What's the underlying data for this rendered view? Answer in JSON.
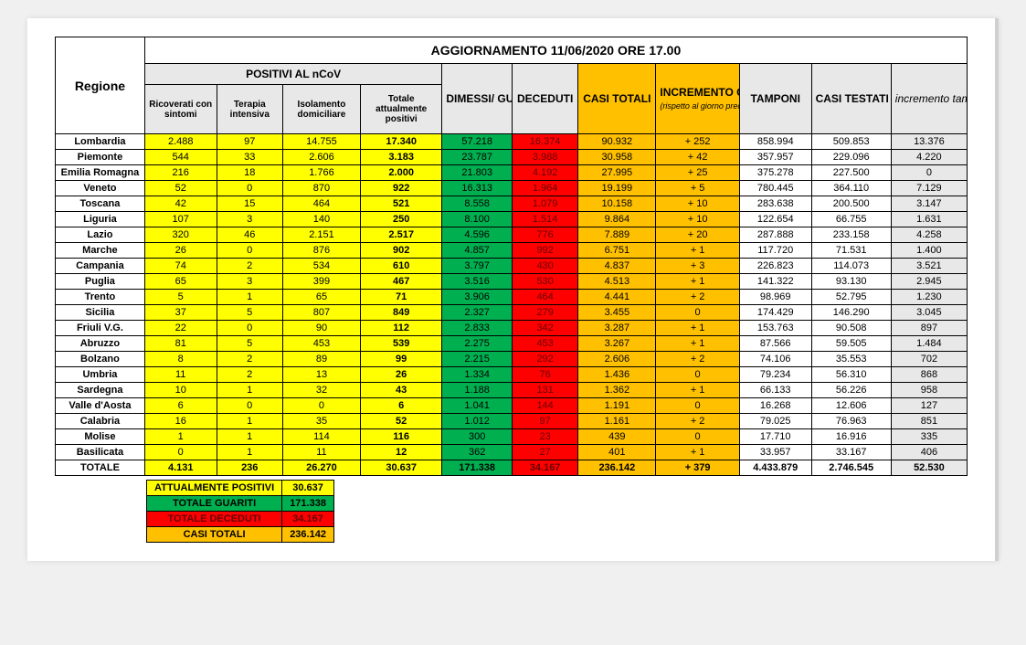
{
  "title": "AGGIORNAMENTO 11/06/2020 ORE 17.00",
  "headers": {
    "regione": "Regione",
    "positivi_group": "POSITIVI AL nCoV",
    "ricoverati": "Ricoverati con sintomi",
    "terapia": "Terapia intensiva",
    "isolamento": "Isolamento domiciliare",
    "tot_pos": "Totale attualmente positivi",
    "dimessi": "DIMESSI/ GUARITI",
    "deceduti": "DECEDUTI",
    "casi_totali": "CASI TOTALI",
    "incremento": "INCREMENTO CASI  TOTALI",
    "incremento_sub": "(rispetto al giorno precedente)",
    "tamponi": "TAMPONI",
    "casi_testati": "CASI TESTATI",
    "inc_tamponi": "incremento tamponi"
  },
  "col_colors": [
    "white",
    "yellow",
    "yellow",
    "yellow",
    "yellow",
    "green",
    "red",
    "orange",
    "orange",
    "white",
    "white",
    "grey"
  ],
  "columns_width": [
    92,
    74,
    68,
    80,
    84,
    72,
    68,
    80,
    86,
    74,
    82,
    78
  ],
  "rows": [
    {
      "r": "Lombardia",
      "v": [
        "2.488",
        "97",
        "14.755",
        "17.340",
        "57.218",
        "16.374",
        "90.932",
        "+ 252",
        "858.994",
        "509.853",
        "13.376"
      ]
    },
    {
      "r": "Piemonte",
      "v": [
        "544",
        "33",
        "2.606",
        "3.183",
        "23.787",
        "3.988",
        "30.958",
        "+ 42",
        "357.957",
        "229.096",
        "4.220"
      ]
    },
    {
      "r": "Emilia Romagna",
      "v": [
        "216",
        "18",
        "1.766",
        "2.000",
        "21.803",
        "4.192",
        "27.995",
        "+ 25",
        "375.278",
        "227.500",
        "0"
      ]
    },
    {
      "r": "Veneto",
      "v": [
        "52",
        "0",
        "870",
        "922",
        "16.313",
        "1.964",
        "19.199",
        "+ 5",
        "780.445",
        "364.110",
        "7.129"
      ]
    },
    {
      "r": "Toscana",
      "v": [
        "42",
        "15",
        "464",
        "521",
        "8.558",
        "1.079",
        "10.158",
        "+ 10",
        "283.638",
        "200.500",
        "3.147"
      ]
    },
    {
      "r": "Liguria",
      "v": [
        "107",
        "3",
        "140",
        "250",
        "8.100",
        "1.514",
        "9.864",
        "+ 10",
        "122.654",
        "66.755",
        "1.631"
      ]
    },
    {
      "r": "Lazio",
      "v": [
        "320",
        "46",
        "2.151",
        "2.517",
        "4.596",
        "776",
        "7.889",
        "+ 20",
        "287.888",
        "233.158",
        "4.258"
      ]
    },
    {
      "r": "Marche",
      "v": [
        "26",
        "0",
        "876",
        "902",
        "4.857",
        "992",
        "6.751",
        "+ 1",
        "117.720",
        "71.531",
        "1.400"
      ]
    },
    {
      "r": "Campania",
      "v": [
        "74",
        "2",
        "534",
        "610",
        "3.797",
        "430",
        "4.837",
        "+ 3",
        "226.823",
        "114.073",
        "3.521"
      ]
    },
    {
      "r": "Puglia",
      "v": [
        "65",
        "3",
        "399",
        "467",
        "3.516",
        "530",
        "4.513",
        "+ 1",
        "141.322",
        "93.130",
        "2.945"
      ]
    },
    {
      "r": "Trento",
      "v": [
        "5",
        "1",
        "65",
        "71",
        "3.906",
        "464",
        "4.441",
        "+ 2",
        "98.969",
        "52.795",
        "1.230"
      ]
    },
    {
      "r": "Sicilia",
      "v": [
        "37",
        "5",
        "807",
        "849",
        "2.327",
        "279",
        "3.455",
        "0",
        "174.429",
        "146.290",
        "3.045"
      ]
    },
    {
      "r": "Friuli V.G.",
      "v": [
        "22",
        "0",
        "90",
        "112",
        "2.833",
        "342",
        "3.287",
        "+ 1",
        "153.763",
        "90.508",
        "897"
      ]
    },
    {
      "r": "Abruzzo",
      "v": [
        "81",
        "5",
        "453",
        "539",
        "2.275",
        "453",
        "3.267",
        "+ 1",
        "87.566",
        "59.505",
        "1.484"
      ]
    },
    {
      "r": "Bolzano",
      "v": [
        "8",
        "2",
        "89",
        "99",
        "2.215",
        "292",
        "2.606",
        "+ 2",
        "74.106",
        "35.553",
        "702"
      ]
    },
    {
      "r": "Umbria",
      "v": [
        "11",
        "2",
        "13",
        "26",
        "1.334",
        "76",
        "1.436",
        "0",
        "79.234",
        "56.310",
        "868"
      ]
    },
    {
      "r": "Sardegna",
      "v": [
        "10",
        "1",
        "32",
        "43",
        "1.188",
        "131",
        "1.362",
        "+ 1",
        "66.133",
        "56.226",
        "958"
      ]
    },
    {
      "r": "Valle d'Aosta",
      "v": [
        "6",
        "0",
        "0",
        "6",
        "1.041",
        "144",
        "1.191",
        "0",
        "16.268",
        "12.606",
        "127"
      ]
    },
    {
      "r": "Calabria",
      "v": [
        "16",
        "1",
        "35",
        "52",
        "1.012",
        "97",
        "1.161",
        "+ 2",
        "79.025",
        "76.963",
        "851"
      ]
    },
    {
      "r": "Molise",
      "v": [
        "1",
        "1",
        "114",
        "116",
        "300",
        "23",
        "439",
        "0",
        "17.710",
        "16.916",
        "335"
      ]
    },
    {
      "r": "Basilicata",
      "v": [
        "0",
        "1",
        "11",
        "12",
        "362",
        "27",
        "401",
        "+ 1",
        "33.957",
        "33.167",
        "406"
      ]
    }
  ],
  "total": {
    "r": "TOTALE",
    "v": [
      "4.131",
      "236",
      "26.270",
      "30.637",
      "171.338",
      "34.167",
      "236.142",
      "+ 379",
      "4.433.879",
      "2.746.545",
      "52.530"
    ]
  },
  "summary": [
    {
      "label": "ATTUALMENTE POSITIVI",
      "value": "30.637",
      "color": "yellow"
    },
    {
      "label": "TOTALE GUARITI",
      "value": "171.338",
      "color": "green"
    },
    {
      "label": "TOTALE DECEDUTI",
      "value": "34.167",
      "color": "red"
    },
    {
      "label": "CASI TOTALI",
      "value": "236.142",
      "color": "orange"
    }
  ]
}
